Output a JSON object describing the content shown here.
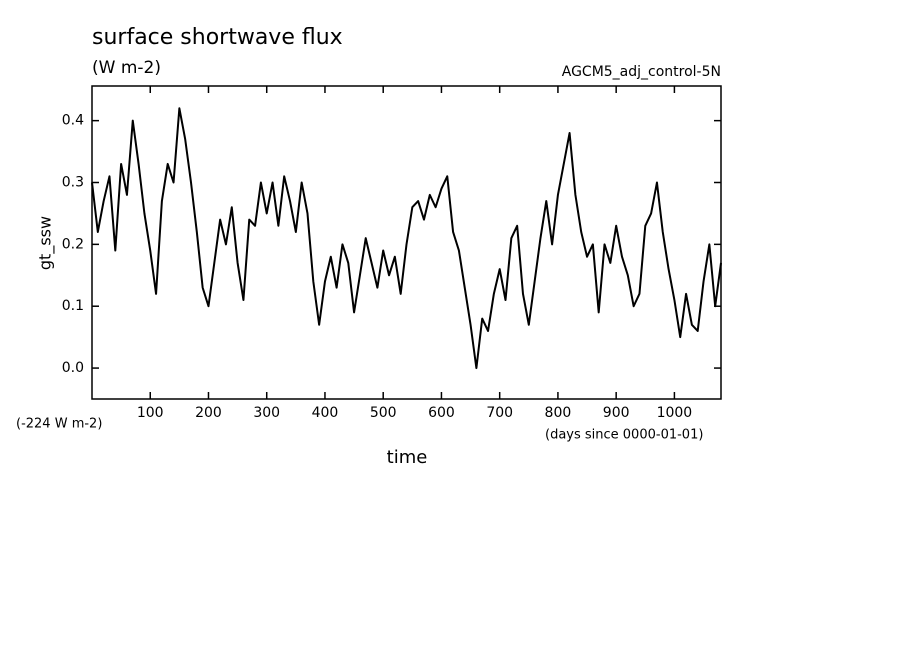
{
  "chart_data": {
    "type": "line",
    "title": "surface shortwave flux",
    "subtitle": "(W m-2)",
    "annotation": "AGCM5_adj_control-5N",
    "offset_note": "(-224 W m-2)",
    "x_units": "(days since 0000-01-01)",
    "xlabel": "time",
    "ylabel": "gt_ssw",
    "x": [
      0,
      10,
      20,
      30,
      40,
      50,
      60,
      70,
      80,
      90,
      100,
      110,
      120,
      130,
      140,
      150,
      160,
      170,
      180,
      190,
      200,
      210,
      220,
      230,
      240,
      250,
      260,
      270,
      280,
      290,
      300,
      310,
      320,
      330,
      340,
      350,
      360,
      370,
      380,
      390,
      400,
      410,
      420,
      430,
      440,
      450,
      460,
      470,
      480,
      490,
      500,
      510,
      520,
      530,
      540,
      550,
      560,
      570,
      580,
      590,
      600,
      610,
      620,
      630,
      640,
      650,
      660,
      670,
      680,
      690,
      700,
      710,
      720,
      730,
      740,
      750,
      760,
      770,
      780,
      790,
      800,
      810,
      820,
      830,
      840,
      850,
      860,
      870,
      880,
      890,
      900,
      910,
      920,
      930,
      940,
      950,
      960,
      970,
      980,
      990,
      1000,
      1010,
      1020,
      1030,
      1040,
      1050,
      1060,
      1070,
      1080
    ],
    "series": [
      {
        "name": "gt_ssw",
        "color": "#000000",
        "values": [
          0.3,
          0.22,
          0.27,
          0.31,
          0.19,
          0.33,
          0.28,
          0.4,
          0.33,
          0.25,
          0.19,
          0.12,
          0.27,
          0.33,
          0.3,
          0.42,
          0.37,
          0.3,
          0.22,
          0.13,
          0.1,
          0.17,
          0.24,
          0.2,
          0.26,
          0.17,
          0.11,
          0.24,
          0.23,
          0.3,
          0.25,
          0.3,
          0.23,
          0.31,
          0.27,
          0.22,
          0.3,
          0.25,
          0.14,
          0.07,
          0.14,
          0.18,
          0.13,
          0.2,
          0.17,
          0.09,
          0.15,
          0.21,
          0.17,
          0.13,
          0.19,
          0.15,
          0.18,
          0.12,
          0.2,
          0.26,
          0.27,
          0.24,
          0.28,
          0.26,
          0.29,
          0.31,
          0.22,
          0.19,
          0.13,
          0.07,
          0.0,
          0.08,
          0.06,
          0.12,
          0.16,
          0.11,
          0.21,
          0.23,
          0.12,
          0.07,
          0.14,
          0.21,
          0.27,
          0.2,
          0.28,
          0.33,
          0.38,
          0.28,
          0.22,
          0.18,
          0.2,
          0.09,
          0.2,
          0.17,
          0.23,
          0.18,
          0.15,
          0.1,
          0.12,
          0.23,
          0.25,
          0.3,
          0.22,
          0.16,
          0.11,
          0.05,
          0.12,
          0.07,
          0.06,
          0.14,
          0.2,
          0.1,
          0.17
        ]
      }
    ],
    "xlim": [
      0,
      1080
    ],
    "ylim": [
      -0.05,
      0.456
    ],
    "xticks": [
      100,
      200,
      300,
      400,
      500,
      600,
      700,
      800,
      900,
      1000
    ],
    "yticks": [
      {
        "value": 0,
        "label": "0.0"
      },
      0.1,
      0.2,
      0.3,
      0.4
    ]
  }
}
